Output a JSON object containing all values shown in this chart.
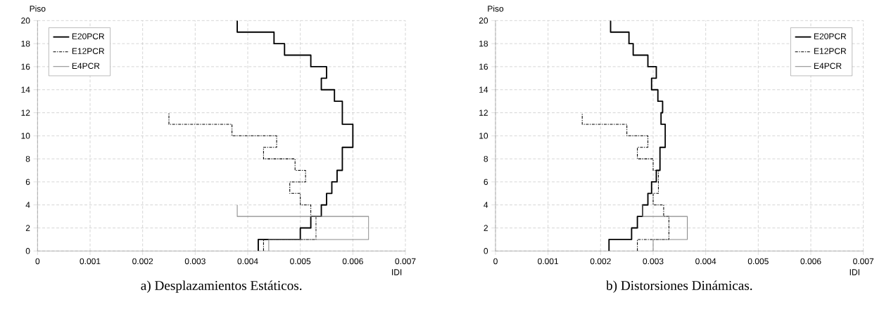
{
  "chart_data": [
    {
      "type": "step",
      "orientation": "horizontal",
      "title": "a) Desplazamientos Estáticos.",
      "xlabel": "IDI",
      "ylabel": "Piso",
      "xlim": [
        0,
        0.007
      ],
      "ylim": [
        0,
        20
      ],
      "xticks": [
        0,
        0.001,
        0.002,
        0.003,
        0.004,
        0.005,
        0.006,
        0.007
      ],
      "yticks": [
        0,
        2,
        4,
        6,
        8,
        10,
        12,
        14,
        16,
        18,
        20
      ],
      "grid": true,
      "legend": "top left",
      "series": [
        {
          "name": "E20PCR",
          "color": "#000000",
          "line_style": "solid",
          "x": [
            0,
            1,
            2,
            3,
            4,
            5,
            6,
            7,
            8,
            9,
            10,
            11,
            12,
            13,
            14,
            15,
            16,
            17,
            18,
            19,
            20
          ],
          "values": [
            0.0042,
            0.005,
            0.0052,
            0.0054,
            0.0055,
            0.0056,
            0.0057,
            0.0058,
            0.0058,
            0.006,
            0.006,
            0.0058,
            0.0058,
            0.00565,
            0.0054,
            0.0055,
            0.0052,
            0.0047,
            0.0045,
            0.0038,
            0.0038
          ]
        },
        {
          "name": "E12PCR",
          "color": "#000000",
          "line_style": "dashdot",
          "x": [
            0,
            1,
            2,
            3,
            4,
            5,
            6,
            7,
            8,
            9,
            10,
            11,
            12
          ],
          "values": [
            0.0043,
            0.0053,
            0.0053,
            0.0052,
            0.005,
            0.0048,
            0.0051,
            0.0049,
            0.0043,
            0.00455,
            0.0037,
            0.0025,
            0.0025
          ]
        },
        {
          "name": "E4PCR",
          "color": "#8c8c8c",
          "line_style": "solid",
          "x": [
            0,
            1,
            2,
            3,
            4
          ],
          "values": [
            0.0044,
            0.0063,
            0.0063,
            0.0038,
            0.0038
          ]
        }
      ]
    },
    {
      "type": "step",
      "orientation": "horizontal",
      "title": "b) Distorsiones Dinámicas.",
      "xlabel": "IDI",
      "ylabel": "Piso",
      "xlim": [
        0,
        0.007
      ],
      "ylim": [
        0,
        20
      ],
      "xticks": [
        0,
        0.001,
        0.002,
        0.003,
        0.004,
        0.005,
        0.006,
        0.007
      ],
      "yticks": [
        0,
        2,
        4,
        6,
        8,
        10,
        12,
        14,
        16,
        18,
        20
      ],
      "grid": true,
      "legend": "top right",
      "series": [
        {
          "name": "E20PCR",
          "color": "#000000",
          "line_style": "solid",
          "x": [
            0,
            1,
            2,
            3,
            4,
            5,
            6,
            7,
            8,
            9,
            10,
            11,
            12,
            13,
            14,
            15,
            16,
            17,
            18,
            19,
            20
          ],
          "values": [
            0.00216,
            0.00259,
            0.0027,
            0.0028,
            0.0029,
            0.00297,
            0.00306,
            0.00313,
            0.00313,
            0.00323,
            0.00323,
            0.00315,
            0.00318,
            0.00309,
            0.00297,
            0.00306,
            0.0029,
            0.00262,
            0.00254,
            0.00219,
            0.00219
          ]
        },
        {
          "name": "E12PCR",
          "color": "#000000",
          "line_style": "dashdot",
          "x": [
            0,
            1,
            2,
            3,
            4,
            5,
            6,
            7,
            8,
            9,
            10,
            11,
            12
          ],
          "values": [
            0.0027,
            0.0033,
            0.0033,
            0.0032,
            0.003,
            0.0031,
            0.0031,
            0.003,
            0.0027,
            0.0029,
            0.0025,
            0.00165,
            0.00165
          ]
        },
        {
          "name": "E4PCR",
          "color": "#8c8c8c",
          "line_style": "solid",
          "x": [
            0,
            1,
            2,
            3,
            4
          ],
          "values": [
            0.003,
            0.00365,
            0.00365,
            0.0028,
            0.0028
          ]
        }
      ]
    }
  ]
}
